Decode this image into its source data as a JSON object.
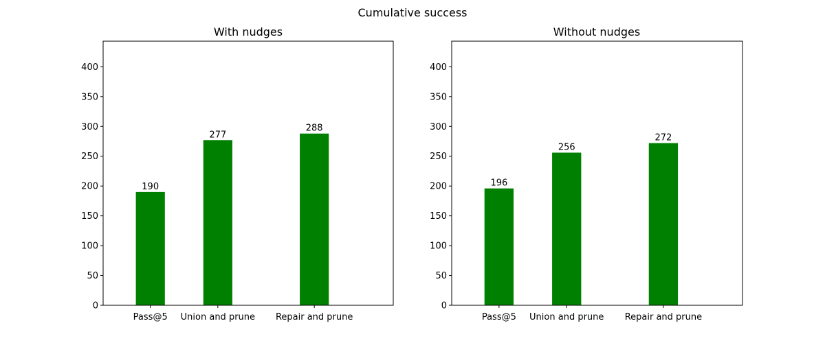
{
  "figure": {
    "suptitle": "Cumulative success"
  },
  "colors": {
    "bar": "#008000",
    "axis": "#000000"
  },
  "chart_data": [
    {
      "type": "bar",
      "title": "With nudges",
      "categories": [
        "Pass@5",
        "Union and prune",
        "Repair and prune"
      ],
      "x": [
        0,
        1,
        2.43
      ],
      "values": [
        190,
        277,
        288
      ],
      "xlabel": "",
      "ylabel": "",
      "xlim": [
        -0.7,
        3.6
      ],
      "ylim": [
        0,
        443
      ],
      "yticks": [
        0,
        50,
        100,
        150,
        200,
        250,
        300,
        350,
        400
      ],
      "grid": false,
      "legend": "none"
    },
    {
      "type": "bar",
      "title": "Without nudges",
      "categories": [
        "Pass@5",
        "Union and prune",
        "Repair and prune"
      ],
      "x": [
        0,
        1,
        2.43
      ],
      "values": [
        196,
        256,
        272
      ],
      "xlabel": "",
      "ylabel": "",
      "xlim": [
        -0.7,
        3.6
      ],
      "ylim": [
        0,
        443
      ],
      "yticks": [
        0,
        50,
        100,
        150,
        200,
        250,
        300,
        350,
        400
      ],
      "grid": false,
      "legend": "none"
    }
  ]
}
